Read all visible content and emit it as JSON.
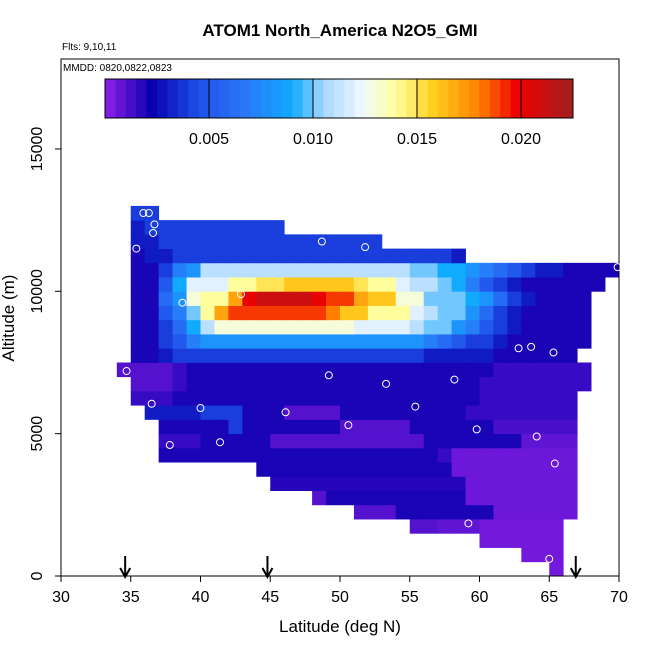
{
  "chart_data": {
    "type": "heatmap",
    "title": "ATOM1 North_America N2O5_GMI",
    "notes": [
      "Flts: 9,10,11",
      "MMDD: 0820,0822,0823"
    ],
    "x_label": "Latitude (deg N)",
    "y_label": "Altitude (m)",
    "xlim": [
      30,
      70
    ],
    "ylim": [
      0,
      18160
    ],
    "xticks": [
      30,
      35,
      40,
      45,
      50,
      55,
      60,
      65,
      70
    ],
    "yticks": [
      0,
      5000,
      10000,
      15000
    ],
    "clim": [
      0,
      0.0225
    ],
    "cticks": [
      0.005,
      {
        "value": 0.01,
        "label": "0.010"
      },
      0.015,
      {
        "value": 0.02,
        "label": "0.020"
      }
    ],
    "colormap": [
      [
        0,
        "#9020e8"
      ],
      [
        0.1,
        "#0a00b0"
      ],
      [
        0.2,
        "#1e50e8"
      ],
      [
        0.3,
        "#2a78f8"
      ],
      [
        0.4,
        "#10aaff"
      ],
      [
        0.47,
        "#aad8ff"
      ],
      [
        0.55,
        "#f0f8ff"
      ],
      [
        0.62,
        "#ffffa0"
      ],
      [
        0.7,
        "#ffd020"
      ],
      [
        0.8,
        "#ff8000"
      ],
      [
        0.88,
        "#ee0000"
      ],
      [
        1,
        "#a02020"
      ]
    ],
    "x": [
      34.5,
      35.5,
      36.5,
      37.5,
      38.5,
      39.5,
      40.5,
      41.5,
      42.5,
      43.5,
      44.5,
      45.5,
      46.5,
      47.5,
      48.5,
      49.5,
      50.5,
      51.5,
      52.5,
      53.5,
      54.5,
      55.5,
      56.5,
      57.5,
      58.5,
      59.5,
      60.5,
      61.5,
      62.5,
      63.5,
      64.5,
      65.5,
      66.5,
      67.5,
      68.5,
      69.5
    ],
    "y": [
      250,
      750,
      1250,
      1750,
      2250,
      2750,
      3250,
      3750,
      4250,
      4750,
      5250,
      5750,
      6250,
      6750,
      7250,
      7750,
      8250,
      8750,
      9250,
      9750,
      10250,
      10750,
      11250,
      11750,
      12250,
      12750
    ],
    "z": [
      [
        null,
        null,
        null,
        null,
        null,
        null,
        null,
        null,
        null,
        null,
        null,
        null,
        null,
        null,
        null,
        null,
        null,
        null,
        null,
        null,
        null,
        null,
        null,
        null,
        null,
        null,
        null,
        null,
        null,
        null,
        null,
        0.0005,
        null,
        null,
        null,
        null
      ],
      [
        null,
        null,
        null,
        null,
        null,
        null,
        null,
        null,
        null,
        null,
        null,
        null,
        null,
        null,
        null,
        null,
        null,
        null,
        null,
        null,
        null,
        null,
        null,
        null,
        null,
        null,
        null,
        null,
        null,
        0.0005,
        0.0005,
        0.0005,
        null,
        null,
        null,
        null
      ],
      [
        null,
        null,
        null,
        null,
        null,
        null,
        null,
        null,
        null,
        null,
        null,
        null,
        null,
        null,
        null,
        null,
        null,
        null,
        null,
        null,
        null,
        null,
        null,
        null,
        null,
        null,
        0.0005,
        0.0005,
        0.0005,
        0.0005,
        0.0005,
        0.0005,
        null,
        null,
        null,
        null
      ],
      [
        null,
        null,
        null,
        null,
        null,
        null,
        null,
        null,
        null,
        null,
        null,
        null,
        null,
        null,
        null,
        null,
        null,
        null,
        null,
        null,
        null,
        0.001,
        0.001,
        0.0008,
        0.0008,
        0.0008,
        0.0005,
        0.0005,
        0.0005,
        0.0005,
        0.0005,
        0.0005,
        null,
        null,
        null,
        null
      ],
      [
        null,
        null,
        null,
        null,
        null,
        null,
        null,
        null,
        null,
        null,
        null,
        null,
        null,
        null,
        null,
        null,
        null,
        0.001,
        0.001,
        0.001,
        0.002,
        0.002,
        0.002,
        0.002,
        0.002,
        0.002,
        0.002,
        0.0006,
        0.0006,
        0.0006,
        0.0006,
        0.0006,
        0.0006,
        null,
        null,
        null
      ],
      [
        null,
        null,
        null,
        null,
        null,
        null,
        null,
        null,
        null,
        null,
        null,
        null,
        null,
        null,
        0.001,
        0.002,
        0.002,
        0.002,
        0.002,
        0.002,
        0.002,
        0.002,
        0.002,
        0.002,
        0.002,
        0.0006,
        0.0006,
        0.0006,
        0.0006,
        0.0006,
        0.0006,
        0.0006,
        0.0006,
        null,
        null,
        null
      ],
      [
        null,
        null,
        null,
        null,
        null,
        null,
        null,
        null,
        null,
        null,
        null,
        0.0018,
        0.0018,
        0.0018,
        0.0018,
        0.0018,
        0.0018,
        0.0018,
        0.0018,
        0.0018,
        0.0018,
        0.0018,
        0.0018,
        0.0018,
        0.0018,
        0.0006,
        0.0006,
        0.0006,
        0.0006,
        0.0006,
        0.0006,
        0.0006,
        0.0006,
        null,
        null,
        null
      ],
      [
        null,
        null,
        null,
        null,
        null,
        null,
        null,
        null,
        null,
        null,
        0.002,
        0.002,
        0.002,
        0.002,
        0.002,
        0.002,
        0.002,
        0.002,
        0.002,
        0.002,
        0.002,
        0.002,
        0.002,
        0.002,
        0.0006,
        0.0006,
        0.0006,
        0.0006,
        0.0006,
        0.0006,
        0.0006,
        0.0006,
        0.0006,
        null,
        null,
        null
      ],
      [
        null,
        null,
        null,
        0.002,
        0.002,
        0.002,
        0.002,
        0.002,
        0.002,
        0.002,
        0.002,
        0.002,
        0.002,
        0.002,
        0.002,
        0.002,
        0.002,
        0.002,
        0.002,
        0.002,
        0.002,
        0.002,
        0.002,
        0.0015,
        0.0006,
        0.0006,
        0.0006,
        0.0006,
        0.0006,
        0.0006,
        0.0006,
        0.0006,
        0.0006,
        null,
        null,
        null
      ],
      [
        null,
        null,
        null,
        0.0015,
        0.0015,
        0.0015,
        0.002,
        0.002,
        0.002,
        0.002,
        0.002,
        0.001,
        0.001,
        0.001,
        0.001,
        0.001,
        0.001,
        0.001,
        0.001,
        0.001,
        0.001,
        0.001,
        0.002,
        0.002,
        0.002,
        0.002,
        0.002,
        0.002,
        0.002,
        0.0008,
        0.0008,
        0.0008,
        0.0008,
        null,
        null,
        null
      ],
      [
        null,
        null,
        null,
        0.002,
        0.002,
        0.002,
        0.002,
        0.002,
        0.004,
        0.002,
        0.002,
        0.002,
        0.002,
        0.002,
        0.002,
        0.002,
        0.001,
        0.001,
        0.001,
        0.001,
        0.001,
        0.002,
        0.002,
        0.002,
        0.002,
        0.002,
        0.002,
        0.0012,
        0.0012,
        0.0012,
        0.0012,
        0.0012,
        0.0012,
        null,
        null,
        null
      ],
      [
        null,
        null,
        0.003,
        0.003,
        0.003,
        0.003,
        0.004,
        0.004,
        0.004,
        0.002,
        0.002,
        0.002,
        0.001,
        0.001,
        0.001,
        0.001,
        0.002,
        0.002,
        0.002,
        0.002,
        0.002,
        0.002,
        0.002,
        0.002,
        0.002,
        0.0015,
        0.0015,
        0.0015,
        0.0015,
        0.0015,
        0.0015,
        0.0015,
        0.0015,
        null,
        null,
        null
      ],
      [
        null,
        0.0015,
        0.0015,
        0.0015,
        0.002,
        0.002,
        0.002,
        0.002,
        0.002,
        0.002,
        0.002,
        0.002,
        0.002,
        0.002,
        0.002,
        0.002,
        0.002,
        0.002,
        0.002,
        0.002,
        0.002,
        0.002,
        0.002,
        0.002,
        0.002,
        0.002,
        0.0015,
        0.0015,
        0.0015,
        0.0015,
        0.0015,
        0.0015,
        0.0015,
        null,
        null,
        null
      ],
      [
        null,
        0.001,
        0.001,
        0.001,
        0.0015,
        0.002,
        0.002,
        0.002,
        0.002,
        0.002,
        0.002,
        0.002,
        0.002,
        0.002,
        0.002,
        0.002,
        0.002,
        0.002,
        0.002,
        0.002,
        0.002,
        0.002,
        0.002,
        0.002,
        0.002,
        0.002,
        0.0015,
        0.0015,
        0.0015,
        0.0015,
        0.0015,
        0.0015,
        0.0015,
        0.0015,
        null,
        null
      ],
      [
        0.001,
        0.001,
        0.001,
        0.001,
        0.0015,
        0.002,
        0.002,
        0.002,
        0.002,
        0.002,
        0.002,
        0.002,
        0.002,
        0.002,
        0.002,
        0.002,
        0.002,
        0.002,
        0.002,
        0.002,
        0.002,
        0.002,
        0.002,
        0.002,
        0.002,
        0.002,
        0.002,
        0.0015,
        0.0015,
        0.0015,
        0.0015,
        0.0015,
        0.0015,
        0.0015,
        null,
        null
      ],
      [
        null,
        0.002,
        0.002,
        0.003,
        0.004,
        0.004,
        0.004,
        0.004,
        0.004,
        0.004,
        0.004,
        0.004,
        0.004,
        0.004,
        0.004,
        0.004,
        0.004,
        0.004,
        0.004,
        0.004,
        0.004,
        0.004,
        0.003,
        0.003,
        0.003,
        0.003,
        0.003,
        0.002,
        0.002,
        0.002,
        0.002,
        0.002,
        0.002,
        null,
        null,
        null
      ],
      [
        null,
        0.002,
        0.002,
        0.004,
        0.005,
        0.007,
        0.008,
        0.008,
        0.008,
        0.008,
        0.008,
        0.008,
        0.008,
        0.008,
        0.008,
        0.008,
        0.008,
        0.008,
        0.008,
        0.008,
        0.008,
        0.008,
        0.007,
        0.006,
        0.005,
        0.004,
        0.004,
        0.003,
        0.002,
        0.002,
        0.002,
        0.002,
        0.002,
        0.002,
        null,
        null
      ],
      [
        null,
        0.002,
        0.002,
        0.004,
        0.006,
        0.009,
        0.011,
        0.013,
        0.013,
        0.013,
        0.013,
        0.013,
        0.013,
        0.013,
        0.013,
        0.013,
        0.013,
        0.012,
        0.012,
        0.012,
        0.012,
        0.011,
        0.01,
        0.01,
        0.008,
        0.007,
        0.005,
        0.004,
        0.003,
        0.002,
        0.002,
        0.002,
        0.002,
        0.002,
        null,
        null
      ],
      [
        null,
        0.002,
        0.002,
        0.005,
        0.007,
        0.01,
        0.014,
        0.017,
        0.019,
        0.019,
        0.019,
        0.019,
        0.019,
        0.019,
        0.019,
        0.018,
        0.016,
        0.016,
        0.014,
        0.014,
        0.014,
        0.012,
        0.011,
        0.01,
        0.01,
        0.008,
        0.006,
        0.004,
        0.003,
        0.002,
        0.002,
        0.002,
        0.002,
        0.002,
        null,
        null
      ],
      [
        null,
        0.002,
        0.002,
        0.006,
        0.008,
        0.013,
        0.014,
        0.014,
        0.017,
        0.02,
        0.021,
        0.021,
        0.021,
        0.021,
        0.02,
        0.019,
        0.019,
        0.017,
        0.016,
        0.016,
        0.013,
        0.013,
        0.01,
        0.01,
        0.01,
        0.009,
        0.008,
        0.006,
        0.004,
        0.003,
        0.002,
        0.002,
        0.002,
        0.002,
        null,
        null
      ],
      [
        null,
        0.002,
        0.002,
        0.005,
        0.009,
        0.012,
        0.012,
        0.012,
        0.014,
        0.014,
        0.015,
        0.015,
        0.016,
        0.016,
        0.016,
        0.016,
        0.016,
        0.015,
        0.014,
        0.014,
        0.012,
        0.011,
        0.011,
        0.01,
        0.009,
        0.007,
        0.005,
        0.004,
        0.003,
        0.002,
        0.002,
        0.002,
        0.002,
        0.002,
        0.002,
        null
      ],
      [
        null,
        0.002,
        0.002,
        0.004,
        0.007,
        0.008,
        0.011,
        0.011,
        0.011,
        0.011,
        0.011,
        0.011,
        0.011,
        0.011,
        0.011,
        0.011,
        0.011,
        0.011,
        0.011,
        0.011,
        0.011,
        0.01,
        0.01,
        0.009,
        0.009,
        0.008,
        0.007,
        0.006,
        0.005,
        0.004,
        0.003,
        0.003,
        0.002,
        0.002,
        0.002,
        0.002
      ],
      [
        null,
        0.002,
        0.003,
        0.003,
        0.004,
        0.004,
        0.004,
        0.004,
        0.004,
        0.004,
        0.004,
        0.004,
        0.004,
        0.004,
        0.004,
        0.004,
        0.004,
        0.004,
        0.004,
        0.004,
        0.004,
        0.004,
        0.004,
        0.004,
        0.003,
        null,
        null,
        null,
        null,
        null,
        null,
        null,
        null,
        null,
        null,
        null
      ],
      [
        null,
        0.003,
        0.003,
        0.004,
        0.004,
        0.004,
        0.004,
        0.004,
        0.004,
        0.004,
        0.004,
        0.004,
        0.004,
        0.004,
        0.004,
        0.004,
        0.004,
        0.004,
        0.004,
        null,
        null,
        null,
        null,
        null,
        null,
        null,
        null,
        null,
        null,
        null,
        null,
        null,
        null,
        null,
        null,
        null
      ],
      [
        null,
        0.003,
        0.004,
        0.004,
        0.004,
        0.004,
        0.004,
        0.004,
        0.004,
        0.004,
        0.004,
        0.004,
        null,
        null,
        null,
        null,
        null,
        null,
        null,
        null,
        null,
        null,
        null,
        null,
        null,
        null,
        null,
        null,
        null,
        null,
        null,
        null,
        null,
        null,
        null,
        null
      ],
      [
        null,
        0.004,
        0.004,
        null,
        null,
        null,
        null,
        null,
        null,
        null,
        null,
        null,
        null,
        null,
        null,
        null,
        null,
        null,
        null,
        null,
        null,
        null,
        null,
        null,
        null,
        null,
        null,
        null,
        null,
        null,
        null,
        null,
        null,
        null,
        null,
        null
      ]
    ],
    "points": {
      "x": [
        35.9,
        36.3,
        36.7,
        36.6,
        35.4,
        48.7,
        51.8,
        69.9,
        38.7,
        42.9,
        62.8,
        63.7,
        65.3,
        34.7,
        49.2,
        53.3,
        58.2,
        36.5,
        40.0,
        46.1,
        55.4,
        50.6,
        59.8,
        64.1,
        37.8,
        41.4,
        65.4,
        59.2,
        65.0
      ],
      "y": [
        12750,
        12750,
        12350,
        12050,
        11500,
        11750,
        11550,
        10850,
        9600,
        9900,
        8000,
        8050,
        7850,
        7200,
        7050,
        6750,
        6900,
        6050,
        5900,
        5750,
        5950,
        5300,
        5150,
        4900,
        4600,
        4700,
        3950,
        1850,
        600
      ]
    },
    "markers": [
      34.6,
      44.8,
      66.9
    ]
  }
}
